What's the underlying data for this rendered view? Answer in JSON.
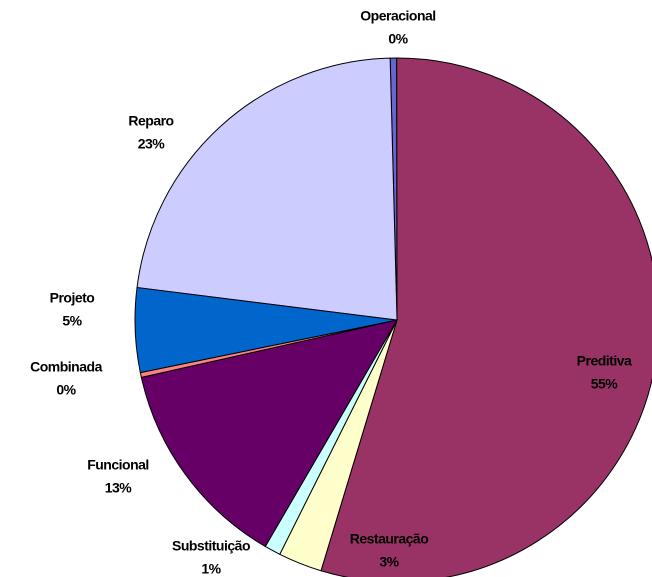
{
  "chart_data": {
    "type": "pie",
    "categories": [
      "Operacional",
      "Preditiva",
      "Restauração",
      "Substituição",
      "Funcional",
      "Combinada",
      "Projeto",
      "Reparo"
    ],
    "values": [
      0.4,
      54.7,
      2.7,
      1,
      13.1,
      0.3,
      5.2,
      22.6
    ],
    "value_labels": [
      "0%",
      "55%",
      "3%",
      "1%",
      "13%",
      "0%",
      "5%",
      "23%"
    ],
    "colors": [
      "#6666cc",
      "#993366",
      "#ffffcc",
      "#ccffff",
      "#660066",
      "#ff8080",
      "#0066cc",
      "#ccccff"
    ]
  }
}
